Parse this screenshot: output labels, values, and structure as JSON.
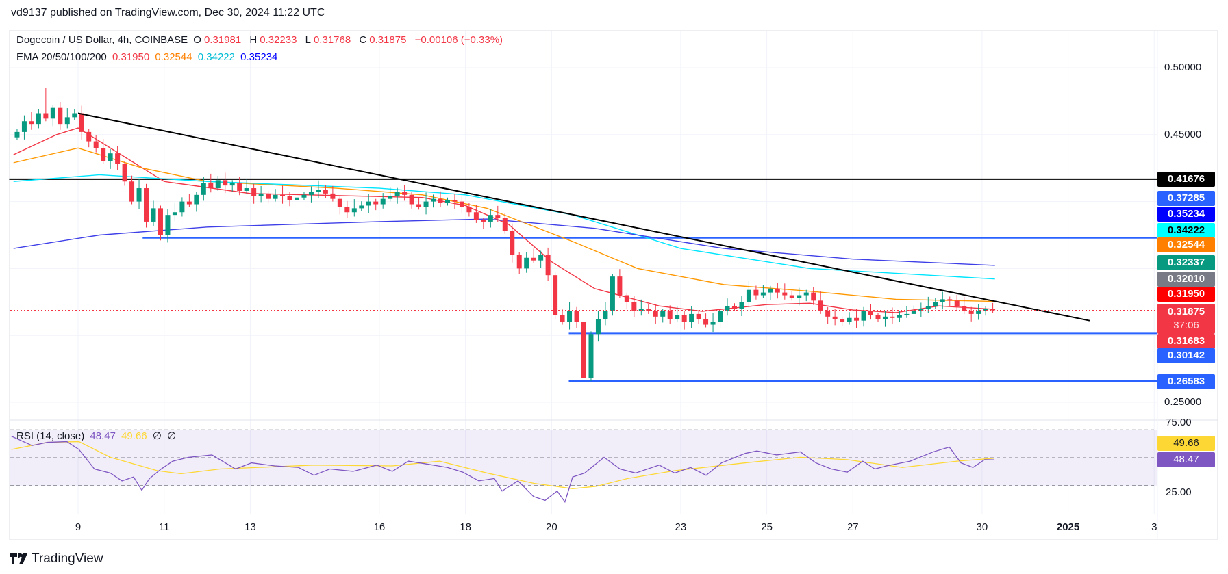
{
  "publish_line": "vd9137 published on TradingView.com, Dec 30, 2024 11:22 UTC",
  "legend": {
    "symbol": "Dogecoin / US Dollar, 4h, COINBASE",
    "o_label": "O",
    "o": "0.31981",
    "h_label": "H",
    "h": "0.32233",
    "l_label": "L",
    "l": "0.31768",
    "c_label": "C",
    "c": "0.31875",
    "change": "−0.00106 (−0.33%)",
    "ema_label": "EMA 20/50/100/200",
    "ema20": "0.31950",
    "ema50": "0.32544",
    "ema100": "0.34222",
    "ema200": "0.35234",
    "rsi_label": "RSI (14, close)",
    "rsi": "48.47",
    "rsi_ma": "49.66",
    "rsi_x1": "∅",
    "rsi_x2": "∅"
  },
  "colors": {
    "up": "#089981",
    "down": "#f23645",
    "ema20": "#f23645",
    "ema50": "#ff9800",
    "ema100": "#00e5ff",
    "ema200": "#3f3fe8",
    "rsi": "#7e57c2",
    "rsi_ma": "#fdd835",
    "level": "#2962ff"
  },
  "price_axis": {
    "ticks": [
      "0.50000",
      "0.45000",
      "0.25000"
    ],
    "labels": [
      {
        "value": "0.41676",
        "bg": "#000000",
        "fg": "#ffffff"
      },
      {
        "value": "0.37285",
        "bg": "#2962ff",
        "fg": "#ffffff"
      },
      {
        "value": "0.35234",
        "bg": "#0000ff",
        "fg": "#ffffff"
      },
      {
        "value": "0.34222",
        "bg": "#00ffff",
        "fg": "#000000"
      },
      {
        "value": "0.32544",
        "bg": "#ff8000",
        "fg": "#ffffff"
      },
      {
        "value": "0.32337",
        "bg": "#089981",
        "fg": "#ffffff"
      },
      {
        "value": "0.32010",
        "bg": "#787b86",
        "fg": "#ffffff"
      },
      {
        "value": "0.31950",
        "bg": "#ff0000",
        "fg": "#ffffff"
      },
      {
        "value": "0.31875",
        "bg": "#f23645",
        "fg": "#ffffff",
        "countdown": "37:06"
      },
      {
        "value": "0.31683",
        "bg": "#f23645",
        "fg": "#ffffff"
      },
      {
        "value": "0.30142",
        "bg": "#2962ff",
        "fg": "#ffffff"
      },
      {
        "value": "0.26583",
        "bg": "#2962ff",
        "fg": "#ffffff"
      }
    ]
  },
  "rsi_axis": {
    "ticks": [
      "75.00",
      "25.00"
    ],
    "rsi_label": "48.47",
    "ma_label": "49.66"
  },
  "time_axis": [
    "9",
    "11",
    "13",
    "16",
    "18",
    "20",
    "23",
    "25",
    "27",
    "30",
    "2025",
    "3"
  ],
  "brand": "TradingView",
  "chart_data": {
    "type": "candlestick",
    "title": "Dogecoin / US Dollar, 4h, COINBASE",
    "x_unit": "day of Dec 2024 (Jan 1 = 32)",
    "start_day": 7.5,
    "candle_days": 0.16667,
    "ylim": [
      0.235,
      0.527
    ],
    "closes": [
      0.452,
      0.46,
      0.458,
      0.466,
      0.462,
      0.47,
      0.458,
      0.463,
      0.466,
      0.452,
      0.445,
      0.44,
      0.43,
      0.436,
      0.428,
      0.415,
      0.4,
      0.41,
      0.385,
      0.395,
      0.375,
      0.39,
      0.392,
      0.4,
      0.398,
      0.405,
      0.414,
      0.41,
      0.416,
      0.412,
      0.414,
      0.408,
      0.41,
      0.404,
      0.406,
      0.402,
      0.405,
      0.404,
      0.401,
      0.403,
      0.405,
      0.407,
      0.409,
      0.406,
      0.402,
      0.396,
      0.392,
      0.395,
      0.397,
      0.4,
      0.398,
      0.402,
      0.404,
      0.407,
      0.405,
      0.398,
      0.396,
      0.4,
      0.402,
      0.399,
      0.401,
      0.4,
      0.396,
      0.392,
      0.386,
      0.385,
      0.39,
      0.388,
      0.378,
      0.36,
      0.35,
      0.358,
      0.356,
      0.36,
      0.345,
      0.315,
      0.31,
      0.318,
      0.31,
      0.268,
      0.301,
      0.312,
      0.318,
      0.344,
      0.33,
      0.325,
      0.318,
      0.32,
      0.318,
      0.314,
      0.318,
      0.312,
      0.315,
      0.31,
      0.316,
      0.312,
      0.308,
      0.31,
      0.318,
      0.322,
      0.32,
      0.325,
      0.334,
      0.33,
      0.332,
      0.335,
      0.332,
      0.33,
      0.328,
      0.33,
      0.332,
      0.326,
      0.318,
      0.314,
      0.312,
      0.31,
      0.313,
      0.311,
      0.318,
      0.315,
      0.312,
      0.314,
      0.313,
      0.315,
      0.316,
      0.318,
      0.32,
      0.322,
      0.325,
      0.327,
      0.326,
      0.322,
      0.318,
      0.316,
      0.318,
      0.31981,
      0.31875
    ],
    "wick_overrides": {
      "4": {
        "h": 0.485
      },
      "20": {
        "l": 0.371
      },
      "80": {
        "l": 0.2658
      },
      "81": {
        "h": 0.318
      },
      "83": {
        "h": 0.346
      },
      "125": {
        "h": 0.3223,
        "l": 0.3177
      }
    },
    "ema": [
      {
        "name": "EMA 20",
        "points": [
          [
            7.5,
            0.435
          ],
          [
            8.5,
            0.45
          ],
          [
            9,
            0.455
          ],
          [
            10,
            0.435
          ],
          [
            11,
            0.415
          ],
          [
            13,
            0.406
          ],
          [
            17,
            0.403
          ],
          [
            18,
            0.397
          ],
          [
            19,
            0.383
          ],
          [
            20,
            0.355
          ],
          [
            21,
            0.335
          ],
          [
            22.5,
            0.322
          ],
          [
            23.5,
            0.318
          ],
          [
            25,
            0.323
          ],
          [
            26,
            0.324
          ],
          [
            27,
            0.319
          ],
          [
            28,
            0.317
          ],
          [
            29,
            0.322
          ],
          [
            30.3,
            0.3195
          ]
        ]
      },
      {
        "name": "EMA 50",
        "points": [
          [
            7.5,
            0.429
          ],
          [
            9,
            0.44
          ],
          [
            10.5,
            0.425
          ],
          [
            12,
            0.415
          ],
          [
            15,
            0.41
          ],
          [
            17,
            0.405
          ],
          [
            18.5,
            0.395
          ],
          [
            20.5,
            0.37
          ],
          [
            22,
            0.35
          ],
          [
            24,
            0.338
          ],
          [
            26,
            0.333
          ],
          [
            28,
            0.327
          ],
          [
            30.3,
            0.3254
          ]
        ]
      },
      {
        "name": "EMA 100",
        "points": [
          [
            7.5,
            0.415
          ],
          [
            9.5,
            0.42
          ],
          [
            12,
            0.415
          ],
          [
            16,
            0.41
          ],
          [
            18,
            0.405
          ],
          [
            20.5,
            0.39
          ],
          [
            23,
            0.365
          ],
          [
            26,
            0.35
          ],
          [
            30.3,
            0.3422
          ]
        ]
      },
      {
        "name": "EMA 200",
        "points": [
          [
            7.5,
            0.365
          ],
          [
            9.5,
            0.375
          ],
          [
            12,
            0.381
          ],
          [
            16,
            0.385
          ],
          [
            18.5,
            0.387
          ],
          [
            21,
            0.38
          ],
          [
            24,
            0.365
          ],
          [
            27,
            0.357
          ],
          [
            30.3,
            0.3523
          ]
        ]
      }
    ],
    "levels": [
      {
        "name": "resistance",
        "value": 0.41676,
        "from_day": 7.4,
        "color": "#000000"
      },
      {
        "name": "support-1",
        "value": 0.37285,
        "from_day": 10.5,
        "color": "#2962ff"
      },
      {
        "name": "support-2",
        "value": 0.30142,
        "from_day": 20.4,
        "color": "#2962ff"
      },
      {
        "name": "support-3",
        "value": 0.26583,
        "from_day": 20.4,
        "color": "#2962ff"
      }
    ],
    "trendline": [
      [
        9,
        0.466
      ],
      [
        32.5,
        0.311
      ]
    ],
    "last_price": 0.31875,
    "rsi": {
      "ylim": [
        5,
        75
      ],
      "bands": [
        30,
        50,
        70
      ],
      "rsi": [
        [
          7.45,
          65.4
        ],
        [
          7.93,
          58.7
        ],
        [
          8.29,
          61
        ],
        [
          8.74,
          61.5
        ],
        [
          9.02,
          55.9
        ],
        [
          9.38,
          41.9
        ],
        [
          9.75,
          39
        ],
        [
          10.02,
          33.4
        ],
        [
          10.29,
          36.2
        ],
        [
          10.48,
          26.7
        ],
        [
          10.66,
          35.1
        ],
        [
          10.93,
          41.9
        ],
        [
          11.2,
          47.5
        ],
        [
          11.57,
          50.3
        ],
        [
          12.11,
          52
        ],
        [
          12.66,
          41.9
        ],
        [
          13.03,
          46.3
        ],
        [
          13.57,
          44.1
        ],
        [
          14.12,
          43
        ],
        [
          14.48,
          37.4
        ],
        [
          14.85,
          41.9
        ],
        [
          15.39,
          40.2
        ],
        [
          15.94,
          44.7
        ],
        [
          16.3,
          40.2
        ],
        [
          16.67,
          47.5
        ],
        [
          17.03,
          45.8
        ],
        [
          17.58,
          43
        ],
        [
          17.94,
          39.6
        ],
        [
          18.31,
          33.4
        ],
        [
          18.67,
          35.1
        ],
        [
          18.85,
          26.1
        ],
        [
          19.22,
          33.4
        ],
        [
          19.58,
          22.2
        ],
        [
          19.85,
          19.4
        ],
        [
          20.13,
          26.1
        ],
        [
          20.31,
          18.3
        ],
        [
          20.49,
          36.2
        ],
        [
          20.77,
          39
        ],
        [
          21.22,
          50.3
        ],
        [
          21.59,
          41.9
        ],
        [
          21.95,
          39
        ],
        [
          22.5,
          44.7
        ],
        [
          22.86,
          39
        ],
        [
          23.23,
          43
        ],
        [
          23.59,
          37.4
        ],
        [
          23.95,
          46.3
        ],
        [
          24.5,
          53.1
        ],
        [
          24.77,
          54.8
        ],
        [
          25.23,
          52
        ],
        [
          25.78,
          54.2
        ],
        [
          26.14,
          46.3
        ],
        [
          26.5,
          41.9
        ],
        [
          26.87,
          39.6
        ],
        [
          27.23,
          47.5
        ],
        [
          27.51,
          41.9
        ],
        [
          27.78,
          44.1
        ],
        [
          28.33,
          47.5
        ],
        [
          28.87,
          54.2
        ],
        [
          29.24,
          57.6
        ],
        [
          29.51,
          46.3
        ],
        [
          29.79,
          43
        ],
        [
          30.06,
          48.6
        ],
        [
          30.29,
          48.47
        ]
      ],
      "ma": [
        [
          7.45,
          55.9
        ],
        [
          8.29,
          61
        ],
        [
          9.02,
          61.5
        ],
        [
          9.75,
          50.3
        ],
        [
          10.84,
          40.7
        ],
        [
          11.39,
          38.5
        ],
        [
          12.3,
          41.9
        ],
        [
          14.48,
          44.7
        ],
        [
          16.3,
          44.1
        ],
        [
          17.4,
          47.5
        ],
        [
          18.5,
          39
        ],
        [
          19.58,
          31.7
        ],
        [
          20.49,
          27.8
        ],
        [
          21.04,
          29.5
        ],
        [
          21.77,
          35.1
        ],
        [
          22.86,
          40.7
        ],
        [
          24.5,
          46.3
        ],
        [
          25.78,
          50.3
        ],
        [
          26.87,
          48.6
        ],
        [
          28.15,
          43
        ],
        [
          29.42,
          47.5
        ],
        [
          30.29,
          49.66
        ]
      ]
    }
  }
}
